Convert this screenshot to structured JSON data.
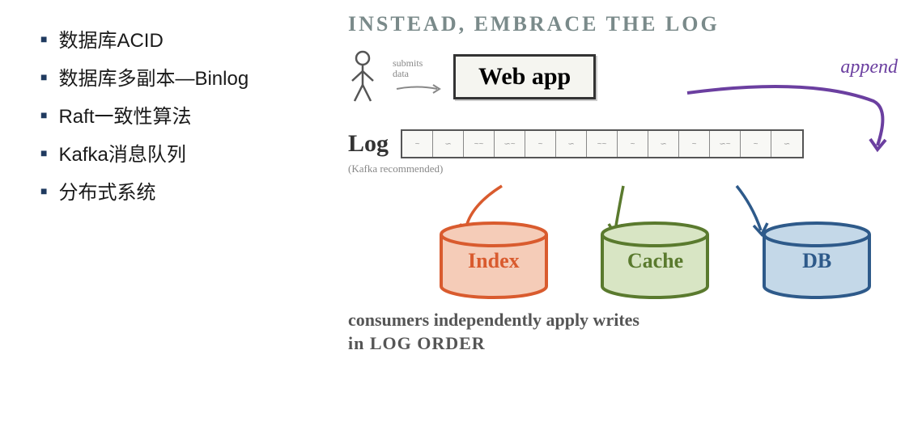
{
  "bullets": [
    "数据库ACID",
    "数据库多副本—Binlog",
    "Raft一致性算法",
    "Kafka消息队列",
    "分布式系统"
  ],
  "diagram": {
    "title": "INSTEAD, EMBRACE THE LOG",
    "submits_label1": "submits",
    "submits_label2": "data",
    "webapp_label": "Web app",
    "append_label": "append",
    "log_label": "Log",
    "kafka_note": "(Kafka recommended)",
    "log_cells": 13,
    "cylinders": [
      {
        "label": "Index",
        "color": "#d95b2e",
        "fill": "#f5ccb8"
      },
      {
        "label": "Cache",
        "color": "#5a7a2e",
        "fill": "#d8e5c4"
      },
      {
        "label": "DB",
        "color": "#2e5a8a",
        "fill": "#c4d8e8"
      }
    ],
    "bottom_line1": "consumers independently apply writes",
    "bottom_line2": "in LOG ORDER",
    "colors": {
      "title": "#7a8a8a",
      "append_arrow": "#6b3fa0",
      "stick": "#555555"
    }
  }
}
